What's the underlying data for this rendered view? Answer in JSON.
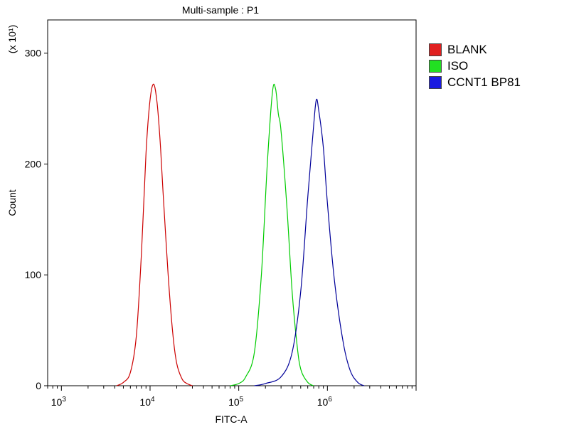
{
  "chart_data": {
    "type": "line",
    "title": "Multi-sample : P1",
    "xlabel": "FITC-A",
    "ylabel": "Count",
    "y_multiplier_label": "(x 10¹)",
    "x_scale": "log",
    "xlim": [
      700,
      10000000
    ],
    "ylim": [
      0,
      330
    ],
    "x_ticks": [
      {
        "value": 1000,
        "base": "10",
        "exp": "3"
      },
      {
        "value": 10000,
        "base": "10",
        "exp": "4"
      },
      {
        "value": 100000,
        "base": "10",
        "exp": "5"
      },
      {
        "value": 1000000,
        "base": "10",
        "exp": "6"
      }
    ],
    "y_ticks": [
      0,
      100,
      200,
      300
    ],
    "legend_position": "right",
    "grid": false,
    "series": [
      {
        "name": "BLANK",
        "color": "#cc0000",
        "swatch_color": "#e02020",
        "x": [
          4200,
          5000,
          6000,
          7000,
          8000,
          9000,
          10000,
          11000,
          12000,
          13000,
          14000,
          16000,
          18000,
          20000,
          23000,
          26000,
          30000
        ],
        "y": [
          0,
          3,
          12,
          45,
          120,
          210,
          258,
          272,
          255,
          220,
          175,
          100,
          48,
          20,
          6,
          2,
          0
        ]
      },
      {
        "name": "ISO",
        "color": "#00cc00",
        "swatch_color": "#22e022",
        "x": [
          80000,
          100000,
          120000,
          150000,
          180000,
          210000,
          240000,
          260000,
          280000,
          300000,
          350000,
          400000,
          450000,
          500000,
          600000,
          700000
        ],
        "y": [
          0,
          2,
          8,
          30,
          100,
          200,
          265,
          268,
          245,
          230,
          160,
          85,
          40,
          15,
          3,
          0
        ]
      },
      {
        "name": "CCNT1 BP81",
        "color": "#000099",
        "swatch_color": "#1a1ae0",
        "x": [
          150000,
          200000,
          300000,
          400000,
          500000,
          600000,
          700000,
          750000,
          800000,
          900000,
          1000000,
          1200000,
          1500000,
          1800000,
          2200000,
          2600000
        ],
        "y": [
          0,
          2,
          8,
          30,
          85,
          170,
          235,
          258,
          248,
          215,
          165,
          95,
          40,
          14,
          3,
          0
        ]
      }
    ]
  }
}
